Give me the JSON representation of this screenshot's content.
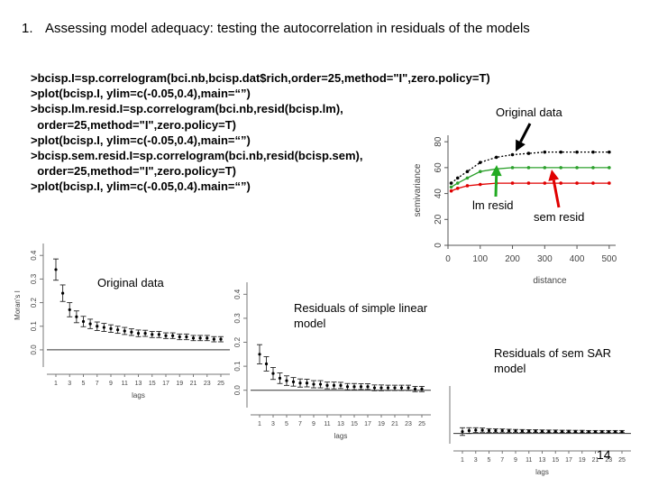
{
  "slide": {
    "heading_number": "1.",
    "heading_text": "Assessing model adequacy: testing the autocorrelation in residuals of the models",
    "code_lines": [
      ">bcisp.I=sp.correlogram(bci.nb,bcisp.dat$rich,order=25,method=\"I\",zero.policy=T)",
      ">plot(bcisp.I, ylim=c(-0.05,0.4),main=“”)",
      ">bcisp.lm.resid.I=sp.correlogram(bci.nb,resid(bcisp.lm),",
      "  order=25,method=\"I\",zero.policy=T)",
      ">plot(bcisp.I, ylim=c(-0.05,0.4),main=“”)",
      ">bcisp.sem.resid.I=sp.correlogram(bci.nb,resid(bcisp.sem),",
      "  order=25,method=\"I\",zero.policy=T)",
      ">plot(bcisp.I, ylim=c(-0.05,0.4).main=“”)"
    ],
    "page_number": "14"
  },
  "annotations": {
    "original_data_top": "Original data",
    "lm_resid": "lm resid",
    "sem_resid": "sem resid",
    "original_data_left": "Original data",
    "residuals_linear": "Residuals of simple linear model",
    "residuals_sem": "Residuals of sem SAR model"
  },
  "colors": {
    "black_series": "#000000",
    "green_series": "#2ca02c",
    "red_series": "#e00000",
    "arrow_black": "#000000",
    "arrow_green": "#22aa22",
    "arrow_red": "#e00000",
    "ref_line": "#333333"
  },
  "chart_data": [
    {
      "type": "line",
      "panel": "semivariogram",
      "xlabel": "distance",
      "ylabel": "semivariance",
      "xticks": [
        "0",
        "100",
        "200",
        "300",
        "400",
        "500"
      ],
      "yticks": [
        "0",
        "20",
        "40",
        "60",
        "80"
      ],
      "xlim": [
        0,
        520
      ],
      "ylim": [
        0,
        85
      ],
      "series": [
        {
          "color": "black",
          "x": [
            10,
            30,
            60,
            100,
            150,
            200,
            250,
            300,
            350,
            400,
            450,
            500
          ],
          "y": [
            48,
            52,
            57,
            64,
            68,
            70,
            71,
            72,
            72,
            72,
            72,
            72
          ]
        },
        {
          "color": "green",
          "x": [
            10,
            30,
            60,
            100,
            150,
            200,
            250,
            300,
            350,
            400,
            450,
            500
          ],
          "y": [
            45,
            48,
            52,
            57,
            59,
            60,
            60,
            60,
            60,
            60,
            60,
            60
          ]
        },
        {
          "color": "red",
          "x": [
            10,
            30,
            60,
            100,
            150,
            200,
            250,
            300,
            350,
            400,
            450,
            500
          ],
          "y": [
            42,
            44,
            46,
            47,
            48,
            48,
            48,
            48,
            48,
            48,
            48,
            48
          ]
        }
      ]
    },
    {
      "type": "scatter",
      "panel": "correlogram-original",
      "xlabel": "lags",
      "ylabel": "Moran's I",
      "yticks": [
        "0.0",
        "0.1",
        "0.2",
        "0.3",
        "0.4"
      ],
      "ylim": [
        -0.05,
        0.42
      ],
      "xticks": [
        "1",
        "3",
        "5",
        "7",
        "9",
        "11",
        "13",
        "15",
        "17",
        "19",
        "21",
        "23",
        "25"
      ],
      "x": [
        1,
        2,
        3,
        4,
        5,
        6,
        7,
        8,
        9,
        10,
        11,
        12,
        13,
        14,
        15,
        16,
        17,
        18,
        19,
        20,
        21,
        22,
        23,
        24,
        25
      ],
      "y": [
        0.34,
        0.24,
        0.17,
        0.14,
        0.12,
        0.11,
        0.1,
        0.095,
        0.09,
        0.085,
        0.08,
        0.075,
        0.07,
        0.07,
        0.065,
        0.065,
        0.06,
        0.06,
        0.055,
        0.055,
        0.05,
        0.05,
        0.05,
        0.045,
        0.045
      ],
      "err": [
        0.045,
        0.035,
        0.03,
        0.025,
        0.022,
        0.02,
        0.018,
        0.017,
        0.016,
        0.015,
        0.015,
        0.014,
        0.014,
        0.013,
        0.013,
        0.013,
        0.012,
        0.012,
        0.012,
        0.012,
        0.011,
        0.011,
        0.011,
        0.011,
        0.011
      ]
    },
    {
      "type": "scatter",
      "panel": "correlogram-lm-residuals",
      "xlabel": "lags",
      "ylabel": "",
      "yticks": [
        "0.0",
        "0.1",
        "0.2",
        "0.3",
        "0.4"
      ],
      "ylim": [
        -0.05,
        0.42
      ],
      "xticks": [
        "1",
        "3",
        "5",
        "7",
        "9",
        "11",
        "13",
        "15",
        "17",
        "19",
        "21",
        "23",
        "25"
      ],
      "x": [
        1,
        2,
        3,
        4,
        5,
        6,
        7,
        8,
        9,
        10,
        11,
        12,
        13,
        14,
        15,
        16,
        17,
        18,
        19,
        20,
        21,
        22,
        23,
        24,
        25
      ],
      "y": [
        0.15,
        0.11,
        0.07,
        0.05,
        0.04,
        0.035,
        0.03,
        0.03,
        0.025,
        0.025,
        0.02,
        0.02,
        0.02,
        0.015,
        0.015,
        0.015,
        0.015,
        0.01,
        0.01,
        0.01,
        0.01,
        0.01,
        0.01,
        0.005,
        0.005
      ],
      "err": [
        0.04,
        0.03,
        0.025,
        0.022,
        0.02,
        0.018,
        0.017,
        0.016,
        0.015,
        0.015,
        0.014,
        0.014,
        0.013,
        0.013,
        0.013,
        0.012,
        0.012,
        0.012,
        0.012,
        0.011,
        0.011,
        0.011,
        0.011,
        0.011,
        0.011
      ]
    },
    {
      "type": "scatter",
      "panel": "correlogram-sem-residuals",
      "xlabel": "lags",
      "ylabel": "",
      "yticks": [],
      "ylim": [
        -0.05,
        0.42
      ],
      "xticks": [
        "1",
        "3",
        "5",
        "7",
        "9",
        "11",
        "13",
        "15",
        "17",
        "19",
        "21",
        "23",
        "25"
      ],
      "x": [
        1,
        2,
        3,
        4,
        5,
        6,
        7,
        8,
        9,
        10,
        11,
        12,
        13,
        14,
        15,
        16,
        17,
        18,
        19,
        20,
        21,
        22,
        23,
        24,
        25
      ],
      "y": [
        0.02,
        0.03,
        0.035,
        0.035,
        0.03,
        0.03,
        0.03,
        0.028,
        0.027,
        0.026,
        0.025,
        0.025,
        0.024,
        0.023,
        0.023,
        0.022,
        0.022,
        0.021,
        0.021,
        0.02,
        0.02,
        0.02,
        0.02,
        0.02,
        0.02
      ],
      "err": [
        0.04,
        0.03,
        0.025,
        0.022,
        0.02,
        0.018,
        0.017,
        0.016,
        0.015,
        0.015,
        0.014,
        0.014,
        0.013,
        0.013,
        0.013,
        0.012,
        0.012,
        0.012,
        0.012,
        0.011,
        0.011,
        0.011,
        0.011,
        0.011,
        0.011
      ]
    }
  ]
}
